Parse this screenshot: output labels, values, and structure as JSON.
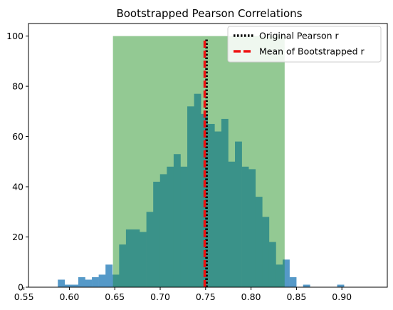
{
  "chart_data": {
    "type": "histogram",
    "title": "Bootstrapped Pearson Correlations",
    "xlabel": "",
    "ylabel": "",
    "xlim": [
      0.555,
      0.95
    ],
    "ylim": [
      0,
      105
    ],
    "x_ticks": [
      0.55,
      0.6,
      0.65,
      0.7,
      0.75,
      0.8,
      0.85,
      0.9
    ],
    "x_tick_labels": [
      "0.55",
      "0.60",
      "0.65",
      "0.70",
      "0.75",
      "0.80",
      "0.85",
      "0.90"
    ],
    "y_ticks": [
      0,
      20,
      40,
      60,
      80,
      100
    ],
    "y_tick_labels": [
      "0",
      "20",
      "40",
      "60",
      "80",
      "100"
    ],
    "grid": false,
    "legend_position": "top-right",
    "histogram": {
      "bin_width": 0.0075,
      "bin_start": 0.5873,
      "counts": [
        3,
        1,
        1,
        4,
        3,
        4,
        5,
        9,
        5,
        17,
        23,
        23,
        22,
        30,
        42,
        45,
        48,
        53,
        48,
        72,
        77,
        69,
        65,
        62,
        67,
        50,
        58,
        48,
        47,
        36,
        28,
        18,
        9,
        11,
        4,
        0,
        1,
        0,
        0,
        0,
        0,
        1
      ],
      "color": "#5599c8"
    },
    "confidence_interval": {
      "x_start": 0.648,
      "x_end": 0.837,
      "y_top": 100,
      "color": "#93c993"
    },
    "overlap_color": "#3a9289",
    "lines": [
      {
        "name": "Original Pearson r",
        "x": 0.751,
        "style": "dotted",
        "color": "#000000"
      },
      {
        "name": "Mean of Bootstrapped r",
        "x": 0.749,
        "style": "dashed",
        "color": "#ee1111"
      }
    ]
  }
}
